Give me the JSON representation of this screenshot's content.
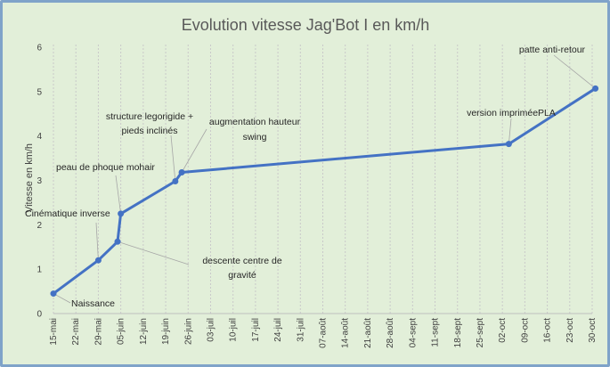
{
  "chart_data": {
    "type": "line",
    "title": "Evolution vitesse Jag'Bot I en km/h",
    "ylabel": "Vitesse en km/h",
    "xlabel": "",
    "ylim": [
      0,
      6
    ],
    "y_ticks": [
      "0",
      "1",
      "2",
      "3",
      "4",
      "5",
      "6"
    ],
    "x_ticks": [
      "15-mai",
      "22-mai",
      "29-mai",
      "05-juin",
      "12-juin",
      "19-juin",
      "26-juin",
      "03-juil",
      "10-juil",
      "17-juil",
      "24-juil",
      "31-juil",
      "07-août",
      "14-août",
      "21-août",
      "28-août",
      "04-sept",
      "11-sept",
      "18-sept",
      "25-sept",
      "02-oct",
      "09-oct",
      "16-oct",
      "23-oct",
      "30-oct"
    ],
    "grid": "vertical",
    "line_color": "#4472c4",
    "background_color": "#e2efd9",
    "series": [
      {
        "points": [
          {
            "x": "15-mai",
            "y": 0.45,
            "label": "Naissance"
          },
          {
            "x": "29-mai",
            "y": 1.2,
            "label": "Cinématique inverse"
          },
          {
            "x": "04-juin",
            "y": 1.62,
            "label": "descente centre de gravité"
          },
          {
            "x": "05-juin",
            "y": 2.25,
            "label": "peau de phoque mohair"
          },
          {
            "x": "22-juin",
            "y": 2.98,
            "label": "structure legorigide + pieds inclinés"
          },
          {
            "x": "24-juin",
            "y": 3.18,
            "label": "augmentation hauteur swing"
          },
          {
            "x": "04-oct",
            "y": 3.82,
            "label": "version impriméePLA"
          },
          {
            "x": "31-oct",
            "y": 5.07,
            "label": "patte anti-retour"
          }
        ]
      }
    ]
  }
}
